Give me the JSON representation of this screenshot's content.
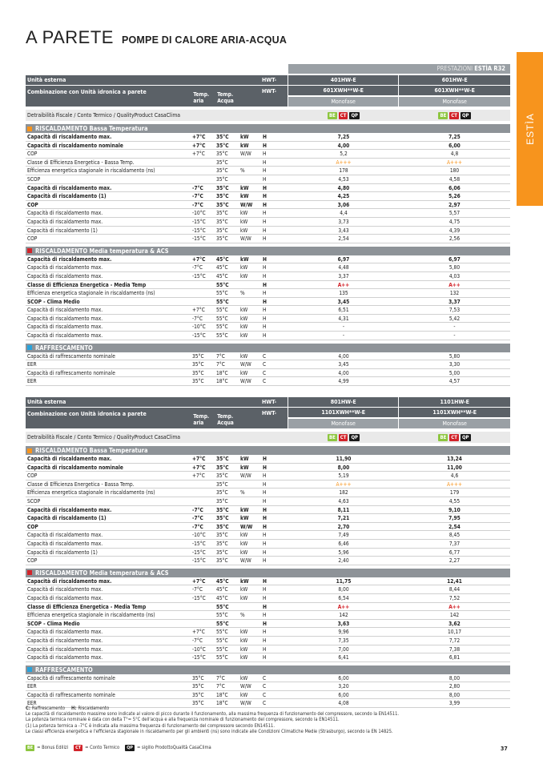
{
  "header": {
    "title": "A PARETE",
    "subtitle": "POMPE DI CALORE ARIA-ACQUA",
    "side_tab": "ESTÌA"
  },
  "band": {
    "text": "PRESTAZIONI",
    "brand": "ESTÌA R32"
  },
  "badges": [
    {
      "text": "BE",
      "color": "#8dc63f"
    },
    {
      "text": "CT",
      "color": "#d2232a"
    },
    {
      "text": "QP",
      "color": "#1a1a1a"
    }
  ],
  "tables": [
    {
      "unit_label": "Unità esterna",
      "unit_code": "HWT-",
      "units": [
        "401HW-E",
        "601HW-E"
      ],
      "combo_label": "Combinazione con Unità idronica a parete",
      "temp_air": "Temp. aria",
      "temp_water": "Temp. Acqua",
      "combo_code": "HWT-",
      "combos": [
        "601XWH**W-E",
        "601XWH**W-E"
      ],
      "phases": [
        "Monofase",
        "Monofase"
      ],
      "incentives_label": "Detraibilità Fiscale / Conto Termico / QualityProduct CasaClima",
      "sections": [
        {
          "title": "RISCALDAMENTO Bassa Temperatura",
          "marker_color": "#f7941d",
          "rows": [
            {
              "cells": [
                "Capacità di riscaldamento max.",
                "+7°C",
                "35°C",
                "kW",
                "H",
                "7,25",
                "7,25"
              ],
              "bold": true
            },
            {
              "cells": [
                "Capacità di riscaldamento nominale",
                "+7°C",
                "35°C",
                "kW",
                "H",
                "4,00",
                "6,00"
              ],
              "bold": true
            },
            {
              "cells": [
                "COP",
                "+7°C",
                "35°C",
                "W/W",
                "H",
                "5,2",
                "4,8"
              ]
            },
            {
              "cells": [
                "Classe di Efficienza Energetica - Bassa Temp.",
                null,
                "35°C",
                null,
                "H",
                "A+++",
                "A+++"
              ],
              "value_color": "#f7941d"
            },
            {
              "cells": [
                "Efficienza energetica stagionale in riscaldamento (ns)",
                null,
                "35°C",
                "%",
                "H",
                "178",
                "180"
              ]
            },
            {
              "cells": [
                "SCOP",
                null,
                "35°C",
                null,
                "H",
                "4,53",
                "4,58"
              ]
            },
            {
              "cells": [
                "Capacità di riscaldamento max.",
                "-7°C",
                "35°C",
                "kW",
                "H",
                "4,80",
                "6,06"
              ],
              "bold": true
            },
            {
              "cells": [
                "Capacità di riscaldamento (1)",
                "-7°C",
                "35°C",
                "kW",
                "H",
                "4,25",
                "5,26"
              ],
              "bold": true
            },
            {
              "cells": [
                "COP",
                "-7°C",
                "35°C",
                "W/W",
                "H",
                "3,06",
                "2,97"
              ],
              "bold": true
            },
            {
              "cells": [
                "Capacità di riscaldamento max.",
                "-10°C",
                "35°C",
                "kW",
                "H",
                "4,4",
                "5,57"
              ]
            },
            {
              "cells": [
                "Capacità di riscaldamento max.",
                "-15°C",
                "35°C",
                "kW",
                "H",
                "3,73",
                "4,75"
              ]
            },
            {
              "cells": [
                "Capacità di riscaldamento (1)",
                "-15°C",
                "35°C",
                "kW",
                "H",
                "3,43",
                "4,39"
              ]
            },
            {
              "cells": [
                "COP",
                "-15°C",
                "35°C",
                "W/W",
                "H",
                "2,54",
                "2,56"
              ]
            }
          ]
        },
        {
          "title": "RISCALDAMENTO Media temperatura & ACS",
          "marker_color": "#d2232a",
          "rows": [
            {
              "cells": [
                "Capacità di riscaldamento max.",
                "+7°C",
                "45°C",
                "kW",
                "H",
                "6,97",
                "6,97"
              ],
              "bold": true
            },
            {
              "cells": [
                "Capacità di riscaldamento max.",
                "-7°C",
                "45°C",
                "kW",
                "H",
                "4,48",
                "5,80"
              ]
            },
            {
              "cells": [
                "Capacità di riscaldamento max.",
                "-15°C",
                "45°C",
                "kW",
                "H",
                "3,37",
                "4,03"
              ]
            },
            {
              "cells": [
                "Classe di Efficienza Energetica - Media Temp",
                null,
                "55°C",
                null,
                "H",
                "A++",
                "A++"
              ],
              "bold": true,
              "value_color": "#d2232a"
            },
            {
              "cells": [
                "Efficienza energetica stagionale in riscaldamento (ns)",
                null,
                "55°C",
                "%",
                "H",
                "135",
                "132"
              ]
            },
            {
              "cells": [
                "SCOP - Clima Medio",
                null,
                "55°C",
                null,
                "H",
                "3,45",
                "3,37"
              ],
              "bold": true
            },
            {
              "cells": [
                "Capacità di riscaldamento max.",
                "+7°C",
                "55°C",
                "kW",
                "H",
                "6,51",
                "7,53"
              ]
            },
            {
              "cells": [
                "Capacità di riscaldamento max.",
                "-7°C",
                "55°C",
                "kW",
                "H",
                "4,31",
                "5,42"
              ]
            },
            {
              "cells": [
                "Capacità di riscaldamento max.",
                "-10°C",
                "55°C",
                "kW",
                "H",
                "-",
                "-"
              ]
            },
            {
              "cells": [
                "Capacità di riscaldamento max.",
                "-15°C",
                "55°C",
                "kW",
                "H",
                "-",
                "-"
              ]
            }
          ]
        },
        {
          "title": "RAFFRESCAMENTO",
          "marker_color": "#29a3dc",
          "rows": [
            {
              "cells": [
                "Capacità di raffrescamento nominale",
                "35°C",
                "7°C",
                "kW",
                "C",
                "4,00",
                "5,80"
              ]
            },
            {
              "cells": [
                "EER",
                "35°C",
                "7°C",
                "W/W",
                "C",
                "3,45",
                "3,30"
              ]
            },
            {
              "cells": [
                "Capacità di raffrescamento nominale",
                "35°C",
                "18°C",
                "kW",
                "C",
                "4,00",
                "5,00"
              ]
            },
            {
              "cells": [
                "EER",
                "35°C",
                "18°C",
                "W/W",
                "C",
                "4,99",
                "4,57"
              ]
            }
          ]
        }
      ]
    },
    {
      "unit_label": "Unità esterna",
      "unit_code": "HWT-",
      "units": [
        "801HW-E",
        "1101HW-E"
      ],
      "combo_label": "Combinazione con Unità idronica a parete",
      "temp_air": "Temp. aria",
      "temp_water": "Temp. Acqua",
      "combo_code": "HWT-",
      "combos": [
        "1101XWH**W-E",
        "1101XWH**W-E"
      ],
      "phases": [
        "Monofase",
        "Monofase"
      ],
      "incentives_label": "Detraibilità Fiscale / Conto Termico / QualityProduct CasaClima",
      "sections": [
        {
          "title": "RISCALDAMENTO Bassa Temperatura",
          "marker_color": "#f7941d",
          "rows": [
            {
              "cells": [
                "Capacità di riscaldamento max.",
                "+7°C",
                "35°C",
                "kW",
                "H",
                "11,90",
                "13,24"
              ],
              "bold": true
            },
            {
              "cells": [
                "Capacità di riscaldamento nominale",
                "+7°C",
                "35°C",
                "kW",
                "H",
                "8,00",
                "11,00"
              ],
              "bold": true
            },
            {
              "cells": [
                "COP",
                "+7°C",
                "35°C",
                "W/W",
                "H",
                "5,19",
                "4,6"
              ]
            },
            {
              "cells": [
                "Classe di Efficienza Energetica - Bassa Temp.",
                null,
                "35°C",
                null,
                "H",
                "A+++",
                "A+++"
              ],
              "value_color": "#f7941d"
            },
            {
              "cells": [
                "Efficienza energetica stagionale in riscaldamento (ns)",
                null,
                "35°C",
                "%",
                "H",
                "182",
                "179"
              ]
            },
            {
              "cells": [
                "SCOP",
                null,
                "35°C",
                null,
                "H",
                "4,63",
                "4,55"
              ]
            },
            {
              "cells": [
                "Capacità di riscaldamento max.",
                "-7°C",
                "35°C",
                "kW",
                "H",
                "8,11",
                "9,10"
              ],
              "bold": true
            },
            {
              "cells": [
                "Capacità di riscaldamento (1)",
                "-7°C",
                "35°C",
                "kW",
                "H",
                "7,21",
                "7,95"
              ],
              "bold": true
            },
            {
              "cells": [
                "COP",
                "-7°C",
                "35°C",
                "W/W",
                "H",
                "2,70",
                "2,54"
              ],
              "bold": true
            },
            {
              "cells": [
                "Capacità di riscaldamento max.",
                "-10°C",
                "35°C",
                "kW",
                "H",
                "7,49",
                "8,45"
              ]
            },
            {
              "cells": [
                "Capacità di riscaldamento max.",
                "-15°C",
                "35°C",
                "kW",
                "H",
                "6,46",
                "7,37"
              ]
            },
            {
              "cells": [
                "Capacità di riscaldamento (1)",
                "-15°C",
                "35°C",
                "kW",
                "H",
                "5,96",
                "6,77"
              ]
            },
            {
              "cells": [
                "COP",
                "-15°C",
                "35°C",
                "W/W",
                "H",
                "2,40",
                "2,27"
              ]
            }
          ]
        },
        {
          "title": "RISCALDAMENTO Media temperatura & ACS",
          "marker_color": "#d2232a",
          "rows": [
            {
              "cells": [
                "Capacità di riscaldamento max.",
                "+7°C",
                "45°C",
                "kW",
                "H",
                "11,75",
                "12,41"
              ],
              "bold": true
            },
            {
              "cells": [
                "Capacità di riscaldamento max.",
                "-7°C",
                "45°C",
                "kW",
                "H",
                "8,00",
                "8,44"
              ]
            },
            {
              "cells": [
                "Capacità di riscaldamento max.",
                "-15°C",
                "45°C",
                "kW",
                "H",
                "6,54",
                "7,52"
              ]
            },
            {
              "cells": [
                "Classe di Efficienza Energetica - Media Temp",
                null,
                "55°C",
                null,
                "H",
                "A++",
                "A++"
              ],
              "bold": true,
              "value_color": "#d2232a"
            },
            {
              "cells": [
                "Efficienza energetica stagionale in riscaldamento (ns)",
                null,
                "55°C",
                "%",
                "H",
                "142",
                "142"
              ]
            },
            {
              "cells": [
                "SCOP - Clima Medio",
                null,
                "55°C",
                null,
                "H",
                "3,63",
                "3,62"
              ],
              "bold": true
            },
            {
              "cells": [
                "Capacità di riscaldamento max.",
                "+7°C",
                "55°C",
                "kW",
                "H",
                "9,96",
                "10,17"
              ]
            },
            {
              "cells": [
                "Capacità di riscaldamento max.",
                "-7°C",
                "55°C",
                "kW",
                "H",
                "7,35",
                "7,72"
              ]
            },
            {
              "cells": [
                "Capacità di riscaldamento max.",
                "-10°C",
                "55°C",
                "kW",
                "H",
                "7,00",
                "7,38"
              ]
            },
            {
              "cells": [
                "Capacità di riscaldamento max.",
                "-15°C",
                "55°C",
                "kW",
                "H",
                "6,41",
                "6,81"
              ]
            }
          ]
        },
        {
          "title": "RAFFRESCAMENTO",
          "marker_color": "#29a3dc",
          "rows": [
            {
              "cells": [
                "Capacità di raffrescamento nominale",
                "35°C",
                "7°C",
                "kW",
                "C",
                "6,00",
                "8,00"
              ]
            },
            {
              "cells": [
                "EER",
                "35°C",
                "7°C",
                "W/W",
                "C",
                "3,20",
                "2,80"
              ]
            },
            {
              "cells": [
                "Capacità di raffrescamento nominale",
                "35°C",
                "18°C",
                "kW",
                "C",
                "6,00",
                "8,00"
              ]
            },
            {
              "cells": [
                "EER",
                "35°C",
                "18°C",
                "W/W",
                "C",
                "4,08",
                "3,99"
              ]
            }
          ]
        }
      ]
    }
  ],
  "footer": {
    "legend": [
      {
        "key": "C:",
        "text": "Raffrescamento"
      },
      {
        "key": "H:",
        "text": "Riscaldamento"
      }
    ],
    "notes": [
      "Le capacità di riscaldamento massime sono indicate al valore di picco durante il funzionamento, alla massima frequenza di funzionamento del compressore, secondo la EN14511.",
      "La potenza termica nominale è data con delta T°= 5°C dell'acqua e alla frequenza nominale di funzionamento del compressore, secondo la EN14511.",
      "(1) La potenza termica a -7°C è indicata alla massima frequenza di funzionamento del compressore secondo EN14511.",
      "Le classi efficienza energetica e l'efficienza stagionale in riscaldamento per gli ambienti (ns) sono indicate alle Condizioni Climatiche Medie (Strasburgo), secondo la EN 14825."
    ],
    "badge_legend": [
      "= Bonus Edilizi",
      "= Conto Termico",
      "= sigillo ProdottoQualità CasaClima"
    ],
    "page_number": "37"
  }
}
